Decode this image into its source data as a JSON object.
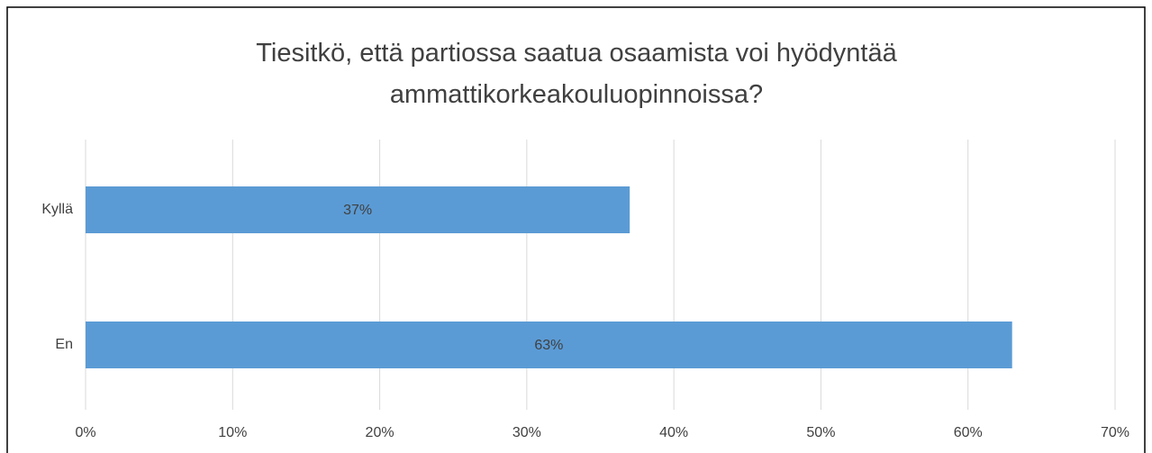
{
  "chart_data": {
    "type": "bar",
    "orientation": "horizontal",
    "title": "Tiesitkö, että partiossa saatua osaamista voi hyödyntää ammattikorkeakouluopinnoissa?",
    "categories": [
      "Kyllä",
      "En"
    ],
    "values": [
      37,
      63
    ],
    "value_labels": [
      "37%",
      "63%"
    ],
    "color": "#5b9bd5",
    "xlim": [
      0,
      70
    ],
    "xticks": [
      {
        "value": 0,
        "label": "0%"
      },
      {
        "value": 10,
        "label": "10%"
      },
      {
        "value": 20,
        "label": "20%"
      },
      {
        "value": 30,
        "label": "30%"
      },
      {
        "value": 40,
        "label": "40%"
      },
      {
        "value": 50,
        "label": "50%"
      },
      {
        "value": 60,
        "label": "60%"
      },
      {
        "value": 70,
        "label": "70%"
      }
    ],
    "grid": true
  }
}
